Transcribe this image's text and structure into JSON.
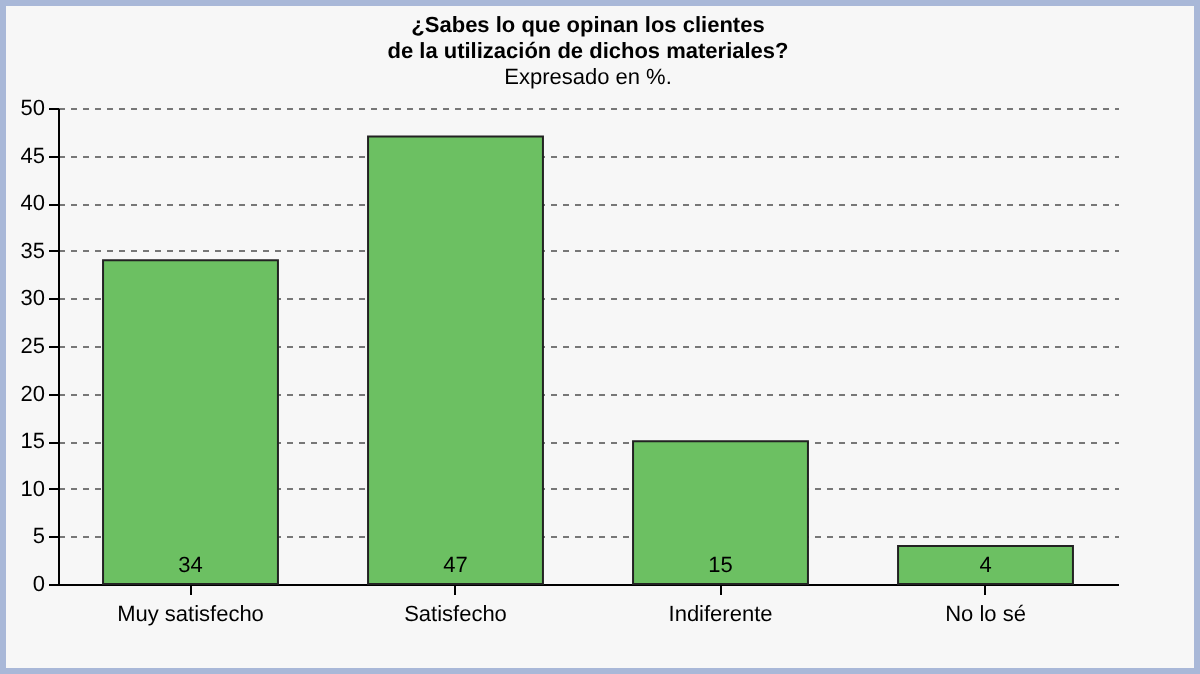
{
  "chart_data": {
    "type": "bar",
    "title": "¿Sabes lo que opinan los clientes\nde la utilización de dichos materiales?",
    "subtitle": "Expresado en %.",
    "categories": [
      "Muy satisfecho",
      "Satisfecho",
      "Indiferente",
      "No lo sé"
    ],
    "values": [
      34,
      47,
      15,
      4
    ],
    "color": "#6cc062",
    "ylim": [
      0,
      50
    ],
    "yticks": [
      0,
      5,
      10,
      15,
      20,
      25,
      30,
      35,
      40,
      45,
      50
    ],
    "grid": "y",
    "data_labels": true
  }
}
